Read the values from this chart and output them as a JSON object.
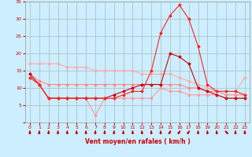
{
  "x": [
    0,
    1,
    2,
    3,
    4,
    5,
    6,
    7,
    8,
    9,
    10,
    11,
    12,
    13,
    14,
    15,
    16,
    17,
    18,
    19,
    20,
    21,
    22,
    23
  ],
  "series": [
    {
      "color": "#ffaaaa",
      "marker": "D",
      "markersize": 1.5,
      "linewidth": 0.8,
      "y": [
        17,
        17,
        17,
        17,
        16,
        16,
        16,
        15,
        15,
        15,
        15,
        15,
        14,
        14,
        14,
        14,
        13,
        12,
        11,
        10,
        9,
        9,
        9,
        13
      ]
    },
    {
      "color": "#ff8888",
      "marker": "D",
      "markersize": 1.5,
      "linewidth": 0.8,
      "y": [
        14,
        12,
        11,
        11,
        11,
        11,
        11,
        11,
        11,
        11,
        11,
        11,
        11,
        11,
        11,
        11,
        11,
        10,
        10,
        9,
        9,
        8,
        8,
        8
      ]
    },
    {
      "color": "#ff9999",
      "marker": "D",
      "markersize": 1.5,
      "linewidth": 0.8,
      "y": [
        13,
        11,
        7,
        7,
        7,
        7,
        7,
        2,
        7,
        7,
        7,
        7,
        7,
        7,
        10,
        9,
        9,
        8,
        8,
        8,
        8,
        7,
        7,
        7
      ]
    },
    {
      "color": "#cc0000",
      "marker": "D",
      "markersize": 1.5,
      "linewidth": 0.8,
      "y": [
        14,
        11,
        7,
        7,
        7,
        7,
        7,
        7,
        7,
        8,
        9,
        10,
        11,
        11,
        11,
        20,
        19,
        17,
        10,
        9,
        8,
        7,
        7,
        7
      ]
    },
    {
      "color": "#ff2222",
      "marker": "D",
      "markersize": 1.5,
      "linewidth": 0.8,
      "y": [
        13,
        11,
        7,
        7,
        7,
        7,
        7,
        7,
        7,
        7,
        8,
        9,
        9,
        15,
        26,
        31,
        34,
        30,
        22,
        11,
        9,
        9,
        9,
        8
      ]
    }
  ],
  "xlabel": "Vent moyen/en rafales ( km/h )",
  "xlim_min": -0.5,
  "xlim_max": 23.5,
  "ylim_min": 0,
  "ylim_max": 35,
  "yticks": [
    0,
    5,
    10,
    15,
    20,
    25,
    30,
    35
  ],
  "xticks": [
    0,
    1,
    2,
    3,
    4,
    5,
    6,
    7,
    8,
    9,
    10,
    11,
    12,
    13,
    14,
    15,
    16,
    17,
    18,
    19,
    20,
    21,
    22,
    23
  ],
  "grid_color": "#aabbbb",
  "bg_color": "#cceeff",
  "xlabel_color": "#cc0000",
  "ytick_color": "#cc0000",
  "xtick_color": "#cc0000",
  "arrow_angles": [
    0,
    0,
    0,
    0,
    0,
    0,
    0,
    0,
    0,
    0,
    0,
    0,
    0,
    0,
    0,
    -20,
    -20,
    -20,
    0,
    0,
    0,
    30,
    0,
    0
  ]
}
